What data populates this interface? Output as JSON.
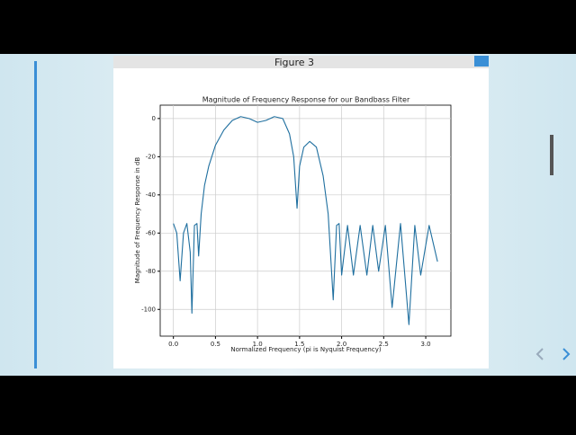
{
  "window_title": "Figure 3",
  "chart_data": {
    "type": "line",
    "title": "Magnitude of Frequency Response for our Bandbass Filter",
    "x_label": "Normalized Frequency (pi is Nyquist Frequency)",
    "y_label": "Magnitude of Frequency Response in dB",
    "x": [
      0,
      0.04,
      0.08,
      0.12,
      0.16,
      0.2,
      0.22,
      0.25,
      0.28,
      0.3,
      0.33,
      0.37,
      0.42,
      0.5,
      0.6,
      0.7,
      0.8,
      0.9,
      1.0,
      1.1,
      1.2,
      1.3,
      1.38,
      1.43,
      1.47,
      1.5,
      1.55,
      1.62,
      1.7,
      1.78,
      1.84,
      1.9,
      1.94,
      1.97,
      2.0,
      2.07,
      2.14,
      2.22,
      2.3,
      2.37,
      2.44,
      2.52,
      2.6,
      2.7,
      2.8,
      2.87,
      2.94,
      3.04,
      3.14
    ],
    "values": [
      -55,
      -60,
      -85,
      -60,
      -55,
      -70,
      -102,
      -56,
      -55,
      -72,
      -50,
      -35,
      -25,
      -14,
      -6,
      -1,
      1,
      0,
      -2,
      -1,
      1,
      0,
      -8,
      -20,
      -47,
      -25,
      -15,
      -12,
      -15,
      -30,
      -50,
      -95,
      -56,
      -55,
      -82,
      -56,
      -82,
      -56,
      -82,
      -56,
      -80,
      -56,
      -99,
      -55,
      -108,
      -56,
      -82,
      -56,
      -75
    ],
    "color": "#1f6f9f",
    "xlim": [
      -0.157,
      3.299
    ],
    "ylim": [
      -114,
      7
    ],
    "xticks": [
      {
        "value": 0,
        "label": "0.0"
      },
      {
        "value": 0.5,
        "label": "0.5"
      },
      {
        "value": 1,
        "label": "1.0"
      },
      {
        "value": 1.5,
        "label": "1.5"
      },
      {
        "value": 2,
        "label": "2.0"
      },
      {
        "value": 2.5,
        "label": "2.5"
      },
      {
        "value": 3,
        "label": "3.0"
      }
    ],
    "yticks": [
      0,
      -20,
      -40,
      -60,
      -80,
      -100
    ],
    "grid": true
  }
}
